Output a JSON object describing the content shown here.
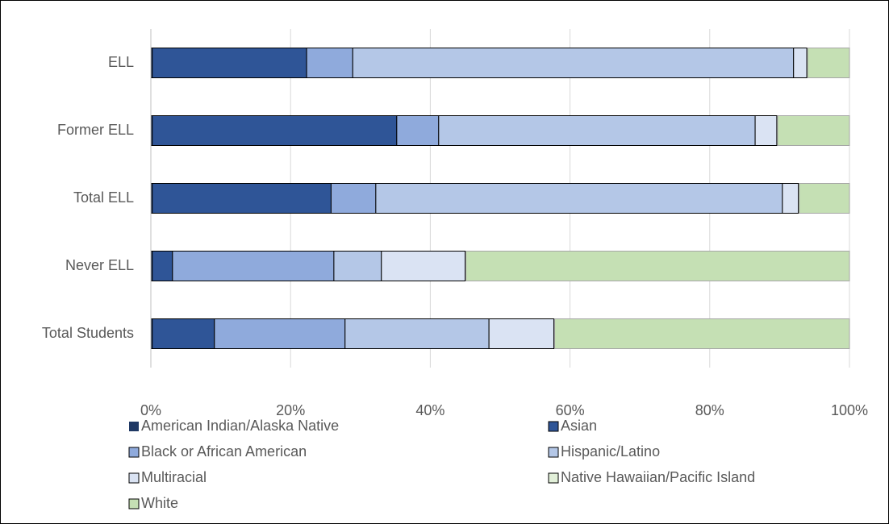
{
  "chart_data": {
    "type": "bar",
    "orientation": "horizontal",
    "stacked": true,
    "categories": [
      "ELL",
      "Former ELL",
      "Total ELL",
      "Never ELL",
      "Total Students"
    ],
    "series": [
      {
        "name": "American Indian/Alaska Native",
        "color": "#1f3864",
        "values": [
          0.2,
          0.2,
          0.2,
          0.2,
          0.2
        ]
      },
      {
        "name": "Asian",
        "color": "#2f5597",
        "values": [
          22.1,
          35.0,
          25.6,
          2.9,
          8.9
        ]
      },
      {
        "name": "Black or African American",
        "color": "#8faadc",
        "values": [
          6.6,
          6.0,
          6.4,
          23.1,
          18.7
        ]
      },
      {
        "name": "Hispanic/Latino",
        "color": "#b4c7e7",
        "values": [
          63.1,
          45.3,
          58.2,
          6.8,
          20.6
        ]
      },
      {
        "name": "Multiracial",
        "color": "#dae3f3",
        "values": [
          1.9,
          3.1,
          2.3,
          12.0,
          9.3
        ]
      },
      {
        "name": "Native Hawaiian/Pacific Island",
        "color": "#e2f0d9",
        "values": [
          0.1,
          0.1,
          0.1,
          0.1,
          0.1
        ]
      },
      {
        "name": "White",
        "color": "#c5e0b4",
        "values": [
          6.0,
          10.3,
          7.2,
          54.9,
          42.2
        ]
      }
    ],
    "xlim": [
      0,
      100
    ],
    "xticks": [
      {
        "value": 0,
        "label": "0%"
      },
      {
        "value": 20,
        "label": "20%"
      },
      {
        "value": 40,
        "label": "40%"
      },
      {
        "value": 60,
        "label": "60%"
      },
      {
        "value": 80,
        "label": "80%"
      },
      {
        "value": 100,
        "label": "100%"
      }
    ],
    "grid": true
  }
}
